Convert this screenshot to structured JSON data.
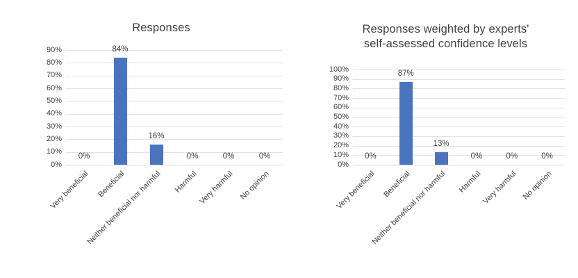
{
  "page": {
    "background": "#ffffff"
  },
  "colors": {
    "bar": "#4c74be",
    "gridline": "#e2e2e2",
    "axis_line": "#d6d6d6",
    "text": "#404040"
  },
  "chart_data": [
    {
      "type": "bar",
      "title": "Responses",
      "categories": [
        "Very beneficial",
        "Beneficial",
        "Neither beneficial nor harmful",
        "Harmful",
        "Very harmful",
        "No opinion"
      ],
      "values": [
        0,
        84,
        16,
        0,
        0,
        0
      ],
      "value_labels": [
        "0%",
        "84%",
        "16%",
        "0%",
        "0%",
        "0%"
      ],
      "xlabel": "",
      "ylabel": "",
      "ylim": [
        0,
        90
      ],
      "ytick_step": 10,
      "ytick_labels": [
        "0%",
        "10%",
        "20%",
        "30%",
        "40%",
        "50%",
        "60%",
        "70%",
        "80%",
        "90%"
      ],
      "grid": true,
      "legend": null,
      "bar_color": "#4c74be"
    },
    {
      "type": "bar",
      "title": "Responses weighted by experts' self-assessed confidence levels",
      "title_lines": [
        "Responses weighted by experts'",
        "self-assessed confidence levels"
      ],
      "categories": [
        "Very beneficial",
        "Beneficial",
        "Neither beneficial nor harmful",
        "Harmful",
        "Very harmful",
        "No opinion"
      ],
      "values": [
        0,
        87,
        13,
        0,
        0,
        0
      ],
      "value_labels": [
        "0%",
        "87%",
        "13%",
        "0%",
        "0%",
        "0%"
      ],
      "xlabel": "",
      "ylabel": "",
      "ylim": [
        0,
        100
      ],
      "ytick_step": 10,
      "ytick_labels": [
        "0%",
        "10%",
        "20%",
        "30%",
        "40%",
        "50%",
        "60%",
        "70%",
        "80%",
        "90%",
        "100%"
      ],
      "grid": true,
      "legend": null,
      "bar_color": "#4c74be"
    }
  ]
}
